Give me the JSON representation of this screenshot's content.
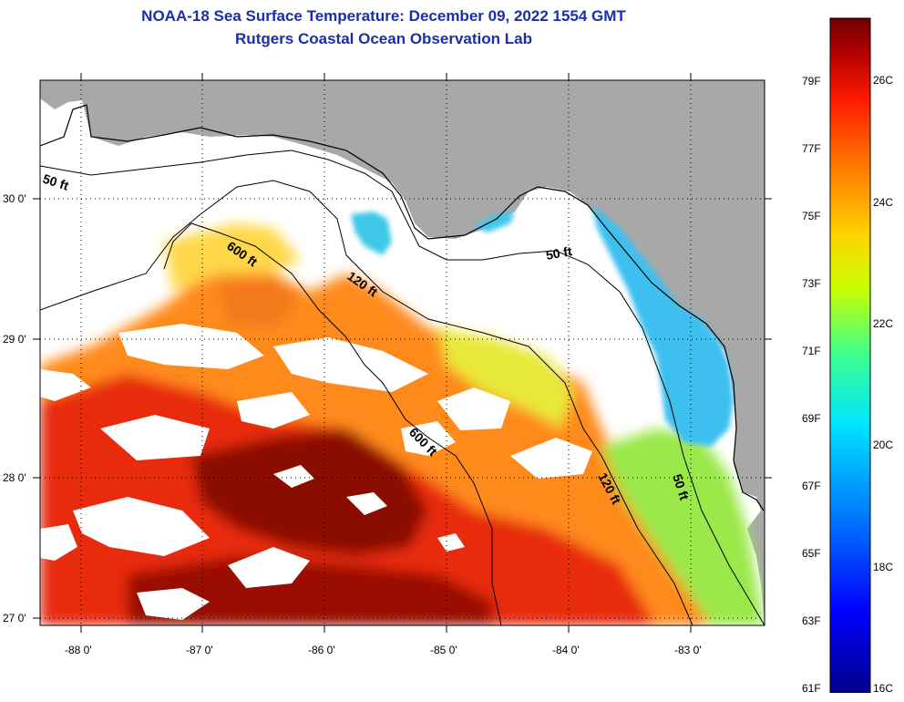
{
  "title": {
    "line1": "NOAA-18 Sea Surface Temperature:  December 09, 2022 1554 GMT",
    "line2": "Rutgers Coastal Ocean Observation Lab"
  },
  "map": {
    "lat_labels": [
      "30 0'",
      "29 0'",
      "28 0'",
      "27 0'"
    ],
    "lon_labels": [
      "-88 0'",
      "-87 0'",
      "-86 0'",
      "-85 0'",
      "-84 0'",
      "-83 0'"
    ],
    "contours": [
      "50 ft",
      "600 ft",
      "120 ft",
      "50 ft",
      "600 ft",
      "120 ft",
      "50 ft"
    ],
    "colors": {
      "land": "#a8a8a8",
      "nodata": "#ffffff",
      "warm": "#8b0000",
      "cool": "#2ec4ff"
    }
  },
  "colorbar": {
    "fahrenheit": [
      "79F",
      "77F",
      "75F",
      "73F",
      "71F",
      "69F",
      "67F",
      "65F",
      "63F",
      "61F"
    ],
    "celsius": [
      "26C",
      "24C",
      "22C",
      "20C",
      "18C",
      "16C"
    ],
    "range_c": [
      16,
      27
    ],
    "colors": [
      "#00008b",
      "#0000ff",
      "#0080ff",
      "#00e5ff",
      "#3cff90",
      "#c8ff00",
      "#ffd200",
      "#ff7a00",
      "#ff1a00",
      "#b00000",
      "#700000"
    ]
  }
}
